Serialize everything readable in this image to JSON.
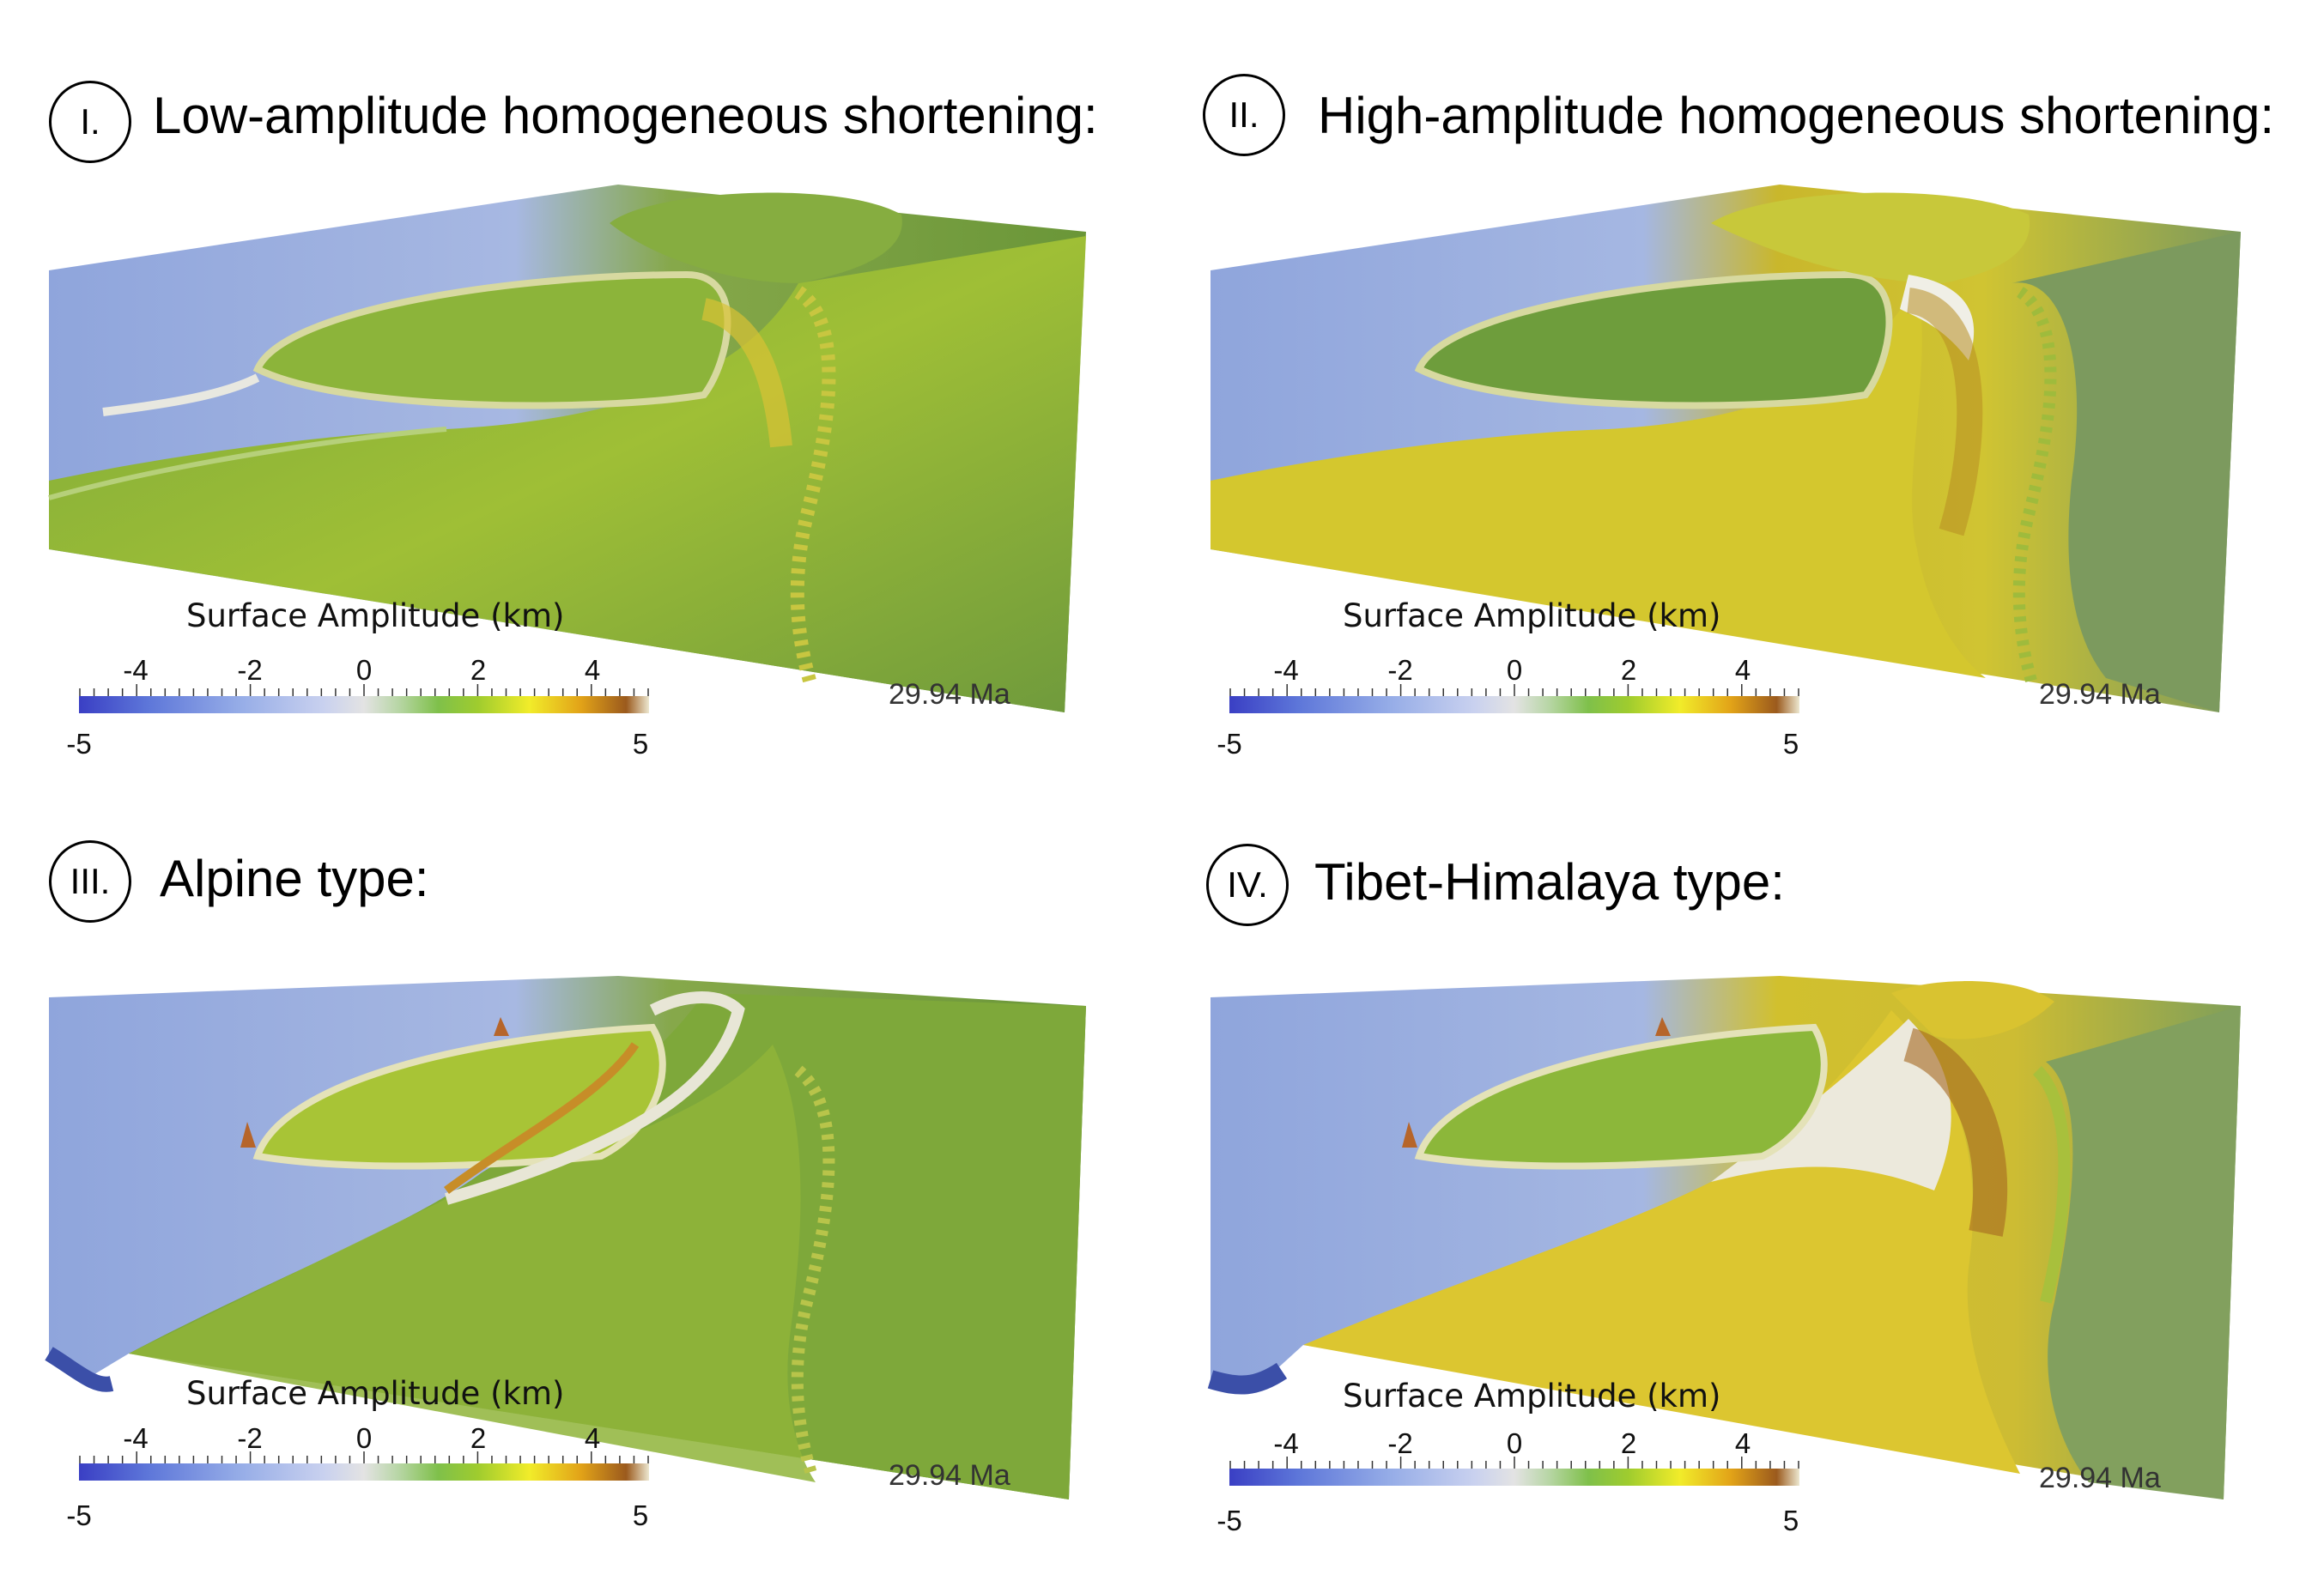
{
  "panels": [
    {
      "numeral": "I.",
      "title": "Low-amplitude homogeneous shortening:",
      "variant": "low"
    },
    {
      "numeral": "II.",
      "title": "High-amplitude homogeneous shortening:",
      "variant": "high"
    },
    {
      "numeral": "III.",
      "title": "Alpine type:",
      "variant": "alpine"
    },
    {
      "numeral": "IV.",
      "title": "Tibet-Himalaya type:",
      "variant": "tibet"
    }
  ],
  "colorbar": {
    "title": "Surface Amplitude (km)",
    "ticks": [
      "-4",
      "-2",
      "0",
      "2",
      "4"
    ],
    "min_label": "-5",
    "max_label": "5",
    "range": [
      -5,
      5
    ],
    "colormap": [
      "#3a3fc4",
      "#5d76d9",
      "#95ace7",
      "#c9d1ef",
      "#e3e3e3",
      "#b8d6a6",
      "#7fc04a",
      "#9fcc2e",
      "#f1ec2a",
      "#e2a318",
      "#9b5a1d",
      "#ece7cf"
    ]
  },
  "time_label": "29.94 Ma",
  "colors": {
    "ocean_blue": "#8aa0d8",
    "plateau_green": "#6f9a3c",
    "uplift_yellow": "#d6c432",
    "high_brown": "#b07a25",
    "ridge_white": "#e8e8e0"
  }
}
